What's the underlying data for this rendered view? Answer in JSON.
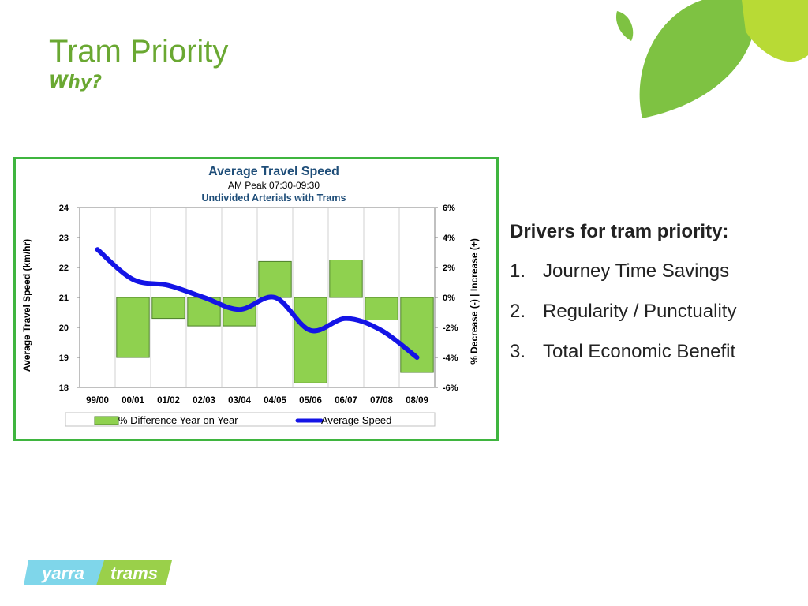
{
  "slide": {
    "title": "Tram Priority",
    "subtitle": "Why?"
  },
  "drivers": {
    "heading": "Drivers for tram priority:",
    "items": [
      {
        "num": "1.",
        "label": "Journey Time Savings"
      },
      {
        "num": "2.",
        "label": "Regularity / Punctuality"
      },
      {
        "num": "3.",
        "label": "Total Economic Benefit"
      }
    ]
  },
  "logo": {
    "left_text": "yarra",
    "right_text": "trams"
  },
  "colors": {
    "accent_green": "#6aa832",
    "frame_green": "#3fb53f",
    "bar_green": "#8fd14f",
    "line_blue": "#1414e6",
    "chart_title_blue": "#1f4e79"
  },
  "chart_data": {
    "type": "bar+line",
    "title": "Average Travel Speed",
    "subtitle_line1": "AM Peak 07:30-09:30",
    "subtitle_line2": "Undivided Arterials with Trams",
    "ylabel_left": "Average Travel Speed (km/hr)",
    "ylabel_right": "% Decrease (-) | Increase (+)",
    "categories": [
      "99/00",
      "00/01",
      "01/02",
      "02/03",
      "03/04",
      "04/05",
      "05/06",
      "06/07",
      "07/08",
      "08/09"
    ],
    "ylim_left": [
      18,
      24
    ],
    "yticks_left": [
      "24",
      "23",
      "22",
      "21",
      "20",
      "19",
      "18"
    ],
    "ylim_right": [
      -6,
      6
    ],
    "yticks_right": [
      "6%",
      "4%",
      "2%",
      "0%",
      "-2%",
      "-4%",
      "-6%"
    ],
    "series": [
      {
        "name": "% Difference Year on Year",
        "kind": "bar",
        "axis": "right",
        "values": [
          null,
          -4.0,
          -1.4,
          -1.9,
          -1.9,
          2.4,
          -5.7,
          2.5,
          -1.5,
          -5.0
        ]
      },
      {
        "name": "Average Speed",
        "kind": "line",
        "axis": "left",
        "values": [
          22.6,
          21.6,
          21.4,
          21.0,
          20.6,
          21.0,
          19.9,
          20.3,
          19.9,
          19.0
        ]
      }
    ],
    "legend": [
      {
        "label": "% Difference Year on Year",
        "kind": "bar"
      },
      {
        "label": "Average Speed",
        "kind": "line"
      }
    ],
    "legend_position": "bottom",
    "grid": "vertical"
  }
}
